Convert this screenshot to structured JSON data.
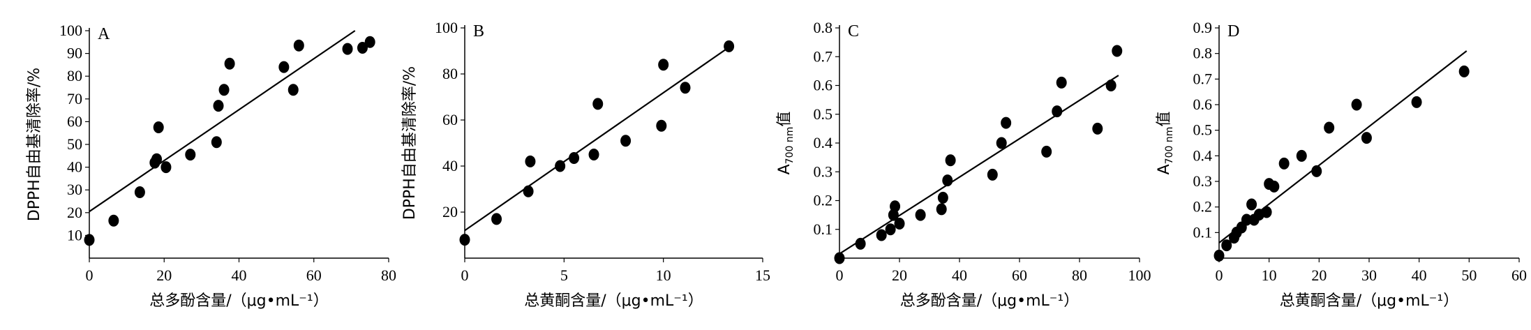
{
  "chart_data": [
    {
      "type": "scatter",
      "panel_label": "A",
      "xlabel": "总多酚含量/（μg•mL⁻¹）",
      "ylabel": "DPPH自由基清除率/%",
      "ylabel_sub": "",
      "ylabel_tail": "",
      "xlim": [
        0,
        80
      ],
      "ylim": [
        0,
        100
      ],
      "xticks": [
        0,
        20,
        40,
        60,
        80
      ],
      "yticks": [
        10,
        20,
        30,
        40,
        50,
        60,
        70,
        80,
        90,
        100
      ],
      "ytick_labels": [
        "10",
        "20",
        "30",
        "40",
        "50",
        "60",
        "70",
        "80",
        "90",
        "100"
      ],
      "points": [
        [
          0,
          8
        ],
        [
          6.5,
          16.5
        ],
        [
          13.5,
          29
        ],
        [
          17.5,
          42
        ],
        [
          18,
          43.5
        ],
        [
          18.5,
          57.5
        ],
        [
          20.5,
          40
        ],
        [
          27,
          45.5
        ],
        [
          34,
          51
        ],
        [
          34.5,
          67
        ],
        [
          36,
          74
        ],
        [
          37.5,
          85.5
        ],
        [
          52,
          84
        ],
        [
          54.5,
          74
        ],
        [
          56,
          93.5
        ],
        [
          69,
          92
        ],
        [
          73,
          92.5
        ],
        [
          75,
          95
        ]
      ],
      "fit_line": [
        [
          0,
          20.5
        ],
        [
          71,
          100
        ]
      ]
    },
    {
      "type": "scatter",
      "panel_label": "B",
      "xlabel": "总黄酮含量/（μg•mL⁻¹）",
      "ylabel": "DPPH自由基清除率/%",
      "ylabel_sub": "",
      "ylabel_tail": "",
      "xlim": [
        0,
        15
      ],
      "ylim": [
        0,
        100
      ],
      "xticks": [
        0,
        5,
        10,
        15
      ],
      "yticks": [
        20,
        40,
        60,
        80,
        100
      ],
      "ytick_labels": [
        "20",
        "40",
        "60",
        "80",
        "100"
      ],
      "points": [
        [
          0,
          8
        ],
        [
          1.6,
          17
        ],
        [
          3.2,
          29
        ],
        [
          3.3,
          42
        ],
        [
          4.8,
          40
        ],
        [
          5.5,
          43.5
        ],
        [
          6.5,
          45
        ],
        [
          6.7,
          67
        ],
        [
          8.1,
          51
        ],
        [
          9.9,
          57.5
        ],
        [
          10,
          84
        ],
        [
          11.1,
          74
        ],
        [
          13.3,
          92
        ]
      ],
      "fit_line": [
        [
          0,
          12
        ],
        [
          13.2,
          91
        ]
      ]
    },
    {
      "type": "scatter",
      "panel_label": "C",
      "xlabel": "总多酚含量/（μg•mL⁻¹）",
      "ylabel": "A",
      "ylabel_sub": "700 nm",
      "ylabel_tail": "值",
      "xlim": [
        0,
        100
      ],
      "ylim": [
        0,
        0.8
      ],
      "xticks": [
        0,
        20,
        40,
        60,
        80,
        100
      ],
      "yticks": [
        0.1,
        0.2,
        0.3,
        0.4,
        0.5,
        0.6,
        0.7,
        0.8
      ],
      "ytick_labels": [
        "0.1",
        "0.2",
        "0.3",
        "0.4",
        "0.5",
        "0.6",
        "0.7",
        "0.8"
      ],
      "points": [
        [
          0,
          0
        ],
        [
          7,
          0.05
        ],
        [
          14,
          0.08
        ],
        [
          17,
          0.1
        ],
        [
          18,
          0.15
        ],
        [
          18.5,
          0.18
        ],
        [
          20,
          0.12
        ],
        [
          27,
          0.15
        ],
        [
          34,
          0.17
        ],
        [
          34.5,
          0.21
        ],
        [
          36,
          0.27
        ],
        [
          37,
          0.34
        ],
        [
          51,
          0.29
        ],
        [
          54,
          0.4
        ],
        [
          55.5,
          0.47
        ],
        [
          69,
          0.37
        ],
        [
          72.5,
          0.51
        ],
        [
          74,
          0.61
        ],
        [
          86,
          0.45
        ],
        [
          90.5,
          0.6
        ],
        [
          92.5,
          0.72
        ]
      ],
      "fit_line": [
        [
          0,
          0.015
        ],
        [
          93,
          0.635
        ]
      ]
    },
    {
      "type": "scatter",
      "panel_label": "D",
      "xlabel": "总黄酮含量/（μg•mL⁻¹）",
      "ylabel": "A",
      "ylabel_sub": "700 nm",
      "ylabel_tail": "值",
      "xlim": [
        0,
        60
      ],
      "ylim": [
        0,
        0.9
      ],
      "xticks": [
        0,
        10,
        20,
        30,
        40,
        50,
        60
      ],
      "yticks": [
        0.1,
        0.2,
        0.3,
        0.4,
        0.5,
        0.6,
        0.7,
        0.8,
        0.9
      ],
      "ytick_labels": [
        "0.1",
        "0.2",
        "0.3",
        "0.4",
        "0.5",
        "0.6",
        "0.7",
        "0.8",
        "0.9"
      ],
      "points": [
        [
          0,
          0.01
        ],
        [
          1.5,
          0.05
        ],
        [
          3,
          0.08
        ],
        [
          3.5,
          0.1
        ],
        [
          4.5,
          0.12
        ],
        [
          5.5,
          0.15
        ],
        [
          6.5,
          0.21
        ],
        [
          7,
          0.15
        ],
        [
          8,
          0.17
        ],
        [
          9.5,
          0.18
        ],
        [
          10,
          0.29
        ],
        [
          11,
          0.28
        ],
        [
          13,
          0.37
        ],
        [
          16.5,
          0.4
        ],
        [
          19.5,
          0.34
        ],
        [
          22,
          0.51
        ],
        [
          27.5,
          0.6
        ],
        [
          29.5,
          0.47
        ],
        [
          39.5,
          0.61
        ],
        [
          49,
          0.73
        ]
      ],
      "fit_line": [
        [
          0,
          0.06
        ],
        [
          49.5,
          0.81
        ]
      ]
    }
  ]
}
